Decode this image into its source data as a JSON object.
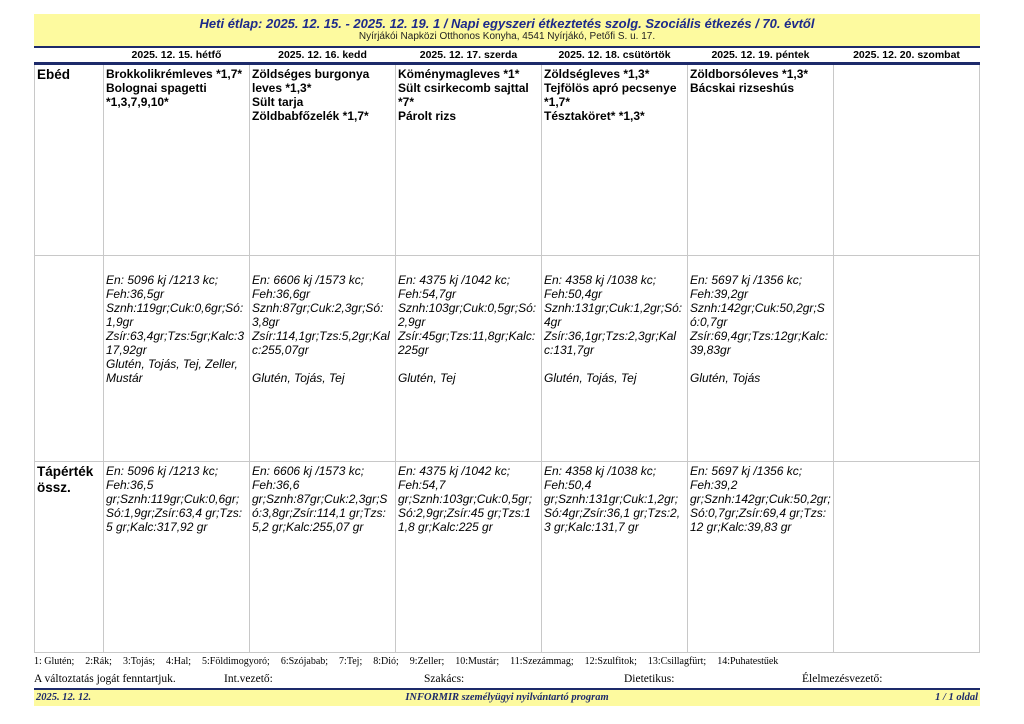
{
  "header": {
    "title": "Heti étlap: 2025. 12. 15. - 2025. 12. 19.   1 / Napi egyszeri étkeztetés szolg. Szociális étkezés / 70. évtől",
    "subtitle": "Nyírjákói Napközi Otthonos Konyha, 4541 Nyírjákó, Petőfi S. u. 17."
  },
  "days": [
    "2025. 12. 15. hétfő",
    "2025. 12. 16. kedd",
    "2025. 12. 17. szerda",
    "2025. 12. 18. csütörtök",
    "2025. 12. 19. péntek",
    "2025. 12. 20. szombat"
  ],
  "rows": {
    "lunch_label": "Ebéd",
    "summary_label": "Tápérték össz."
  },
  "lunch": [
    [
      "Brokkolikrémleves *1,7*",
      "Bolognai spagetti *1,3,7,9,10*"
    ],
    [
      "Zöldséges burgonya leves *1,3*",
      "Sült tarja",
      "Zöldbabfőzelék *1,7*"
    ],
    [
      "Köménymagleves *1*",
      "Sült csirkecomb sajttal *7*",
      "Párolt rizs"
    ],
    [
      "Zöldségleves *1,3*",
      "Tejfölös apró pecsenye *1,7*",
      "Tésztaköret* *1,3*"
    ],
    [
      "Zöldborsóleves *1,3*",
      "Bácskai rizseshús"
    ],
    []
  ],
  "nutrition": [
    {
      "energy": "En: 5096 kj /1213 kc;",
      "protein": "Feh:36,5gr",
      "line2": "Sznh:119gr;Cuk:0,6gr;Só:1,9gr",
      "line3": "Zsír:63,4gr;Tzs:5gr;Kalc:317,92gr",
      "allergens": "Glutén, Tojás, Tej, Zeller, Mustár"
    },
    {
      "energy": "En: 6606 kj /1573 kc;",
      "protein": "Feh:36,6gr",
      "line2": "Sznh:87gr;Cuk:2,3gr;Só:3,8gr",
      "line3": "Zsír:114,1gr;Tzs:5,2gr;Kalc:255,07gr",
      "allergens": "Glutén, Tojás, Tej"
    },
    {
      "energy": "En: 4375 kj /1042 kc;",
      "protein": "Feh:54,7gr",
      "line2": "Sznh:103gr;Cuk:0,5gr;Só:2,9gr",
      "line3": "Zsír:45gr;Tzs:11,8gr;Kalc:225gr",
      "allergens": "Glutén, Tej"
    },
    {
      "energy": "En: 4358 kj /1038 kc;",
      "protein": "Feh:50,4gr",
      "line2": "Sznh:131gr;Cuk:1,2gr;Só:4gr",
      "line3": "Zsír:36,1gr;Tzs:2,3gr;Kalc:131,7gr",
      "allergens": "Glutén, Tojás, Tej"
    },
    {
      "energy": "En: 5697 kj /1356 kc;",
      "protein": "Feh:39,2gr",
      "line2": "Sznh:142gr;Cuk:50,2gr;Só:0,7gr",
      "line3": "Zsír:69,4gr;Tzs:12gr;Kalc:39,83gr",
      "allergens": "Glutén, Tojás"
    }
  ],
  "summary": [
    {
      "energy": "En: 5096 kj /1213 kc;",
      "protein": "Feh:36,5",
      "rest": "gr;Sznh:119gr;Cuk:0,6gr;Só:1,9gr;Zsír:63,4 gr;Tzs:5 gr;Kalc:317,92 gr"
    },
    {
      "energy": "En: 6606 kj /1573 kc;",
      "protein": "Feh:36,6",
      "rest": "gr;Sznh:87gr;Cuk:2,3gr;Só:3,8gr;Zsír:114,1 gr;Tzs:5,2 gr;Kalc:255,07 gr"
    },
    {
      "energy": "En: 4375 kj /1042 kc;",
      "protein": "Feh:54,7",
      "rest": "gr;Sznh:103gr;Cuk:0,5gr;Só:2,9gr;Zsír:45 gr;Tzs:11,8 gr;Kalc:225 gr"
    },
    {
      "energy": "En: 4358 kj /1038 kc;",
      "protein": "Feh:50,4",
      "rest": "gr;Sznh:131gr;Cuk:1,2gr;Só:4gr;Zsír:36,1 gr;Tzs:2,3 gr;Kalc:131,7 gr"
    },
    {
      "energy": "En: 5697 kj /1356 kc;",
      "protein": "Feh:39,2",
      "rest": "gr;Sznh:142gr;Cuk:50,2gr;Só:0,7gr;Zsír:69,4 gr;Tzs:12 gr;Kalc:39,83 gr"
    }
  ],
  "allergen_legend": [
    "1: Glutén;",
    "2:Rák;",
    "3:Tojás;",
    "4:Hal;",
    "5:Földimogyoró;",
    "6:Szójabab;",
    "7:Tej;",
    "8:Dió;",
    "9:Zeller;",
    "10:Mustár;",
    "11:Szezámmag;",
    "12:Szulfitok;",
    "13:Csillagfürt;",
    "14:Puhatestűek"
  ],
  "signatures": {
    "notice": "A változtatás jogát fenntartjuk.",
    "manager": "Int.vezető:",
    "cook": "Szakács:",
    "dietitian": "Dietetikus:",
    "catering": "Élelmezésvezető:"
  },
  "footer": {
    "date": "2025. 12. 12.",
    "program": "INFORMIR személyügyi nyilvántartó program",
    "page": "1 / 1 oldal"
  }
}
